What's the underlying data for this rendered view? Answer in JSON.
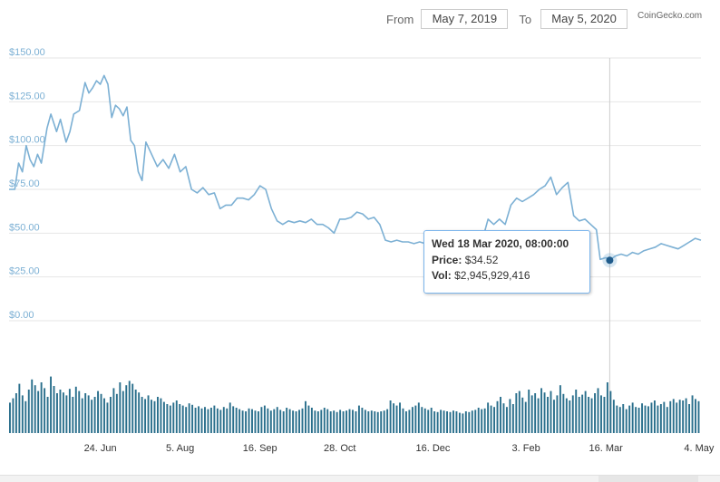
{
  "header": {
    "from_label": "From",
    "from_date": "May 7, 2019",
    "to_label": "To",
    "to_date": "May 5, 2020",
    "brand": "CoinGecko.com"
  },
  "tooltip": {
    "date": "Wed 18 Mar 2020, 08:00:00",
    "price_label": "Price:",
    "price_value": "$34.52",
    "vol_label": "Vol:",
    "vol_value": "$2,945,929,416"
  },
  "colors": {
    "price_line": "#7cb0d4",
    "volume_bars": "#2a6f8c",
    "marker": "#1f5b8b",
    "grid": "#e6e6e6"
  },
  "chart_data": [
    {
      "type": "line",
      "title": "",
      "xlabel": "",
      "ylabel": "",
      "ylim": [
        0,
        150
      ],
      "y_ticks": [
        "$0.00",
        "$25.00",
        "$50.00",
        "$75.00",
        "$100.00",
        "$125.00",
        "$150.00"
      ],
      "x_ticks": [
        {
          "label": "24. Jun",
          "date": "2019-06-24"
        },
        {
          "label": "5. Aug",
          "date": "2019-08-05"
        },
        {
          "label": "16. Sep",
          "date": "2019-09-16"
        },
        {
          "label": "28. Oct",
          "date": "2019-10-28"
        },
        {
          "label": "16. Dec",
          "date": "2019-12-16"
        },
        {
          "label": "3. Feb",
          "date": "2020-02-03"
        },
        {
          "label": "16. Mar",
          "date": "2020-03-16"
        },
        {
          "label": "4. May",
          "date": "2020-05-04"
        }
      ],
      "x_range": [
        "2019-05-07",
        "2020-05-05"
      ],
      "grid": true,
      "legend": "none",
      "series": [
        {
          "points": [
            [
              "2019-05-07",
              75
            ],
            [
              "2019-05-10",
              75
            ],
            [
              "2019-05-12",
              90
            ],
            [
              "2019-05-14",
              85
            ],
            [
              "2019-05-16",
              100
            ],
            [
              "2019-05-18",
              92
            ],
            [
              "2019-05-20",
              88
            ],
            [
              "2019-05-22",
              95
            ],
            [
              "2019-05-24",
              90
            ],
            [
              "2019-05-27",
              110
            ],
            [
              "2019-05-29",
              118
            ],
            [
              "2019-06-01",
              108
            ],
            [
              "2019-06-03",
              115
            ],
            [
              "2019-06-06",
              102
            ],
            [
              "2019-06-08",
              108
            ],
            [
              "2019-06-10",
              118
            ],
            [
              "2019-06-13",
              120
            ],
            [
              "2019-06-16",
              136
            ],
            [
              "2019-06-18",
              130
            ],
            [
              "2019-06-20",
              133
            ],
            [
              "2019-06-22",
              137
            ],
            [
              "2019-06-24",
              135
            ],
            [
              "2019-06-26",
              140
            ],
            [
              "2019-06-28",
              135
            ],
            [
              "2019-06-30",
              116
            ],
            [
              "2019-07-02",
              123
            ],
            [
              "2019-07-04",
              121
            ],
            [
              "2019-07-06",
              117
            ],
            [
              "2019-07-08",
              122
            ],
            [
              "2019-07-10",
              103
            ],
            [
              "2019-07-12",
              100
            ],
            [
              "2019-07-14",
              85
            ],
            [
              "2019-07-16",
              80
            ],
            [
              "2019-07-18",
              102
            ],
            [
              "2019-07-21",
              95
            ],
            [
              "2019-07-24",
              88
            ],
            [
              "2019-07-27",
              92
            ],
            [
              "2019-07-30",
              87
            ],
            [
              "2019-08-02",
              95
            ],
            [
              "2019-08-05",
              85
            ],
            [
              "2019-08-08",
              88
            ],
            [
              "2019-08-11",
              75
            ],
            [
              "2019-08-14",
              73
            ],
            [
              "2019-08-17",
              76
            ],
            [
              "2019-08-20",
              72
            ],
            [
              "2019-08-23",
              73
            ],
            [
              "2019-08-26",
              64
            ],
            [
              "2019-08-29",
              66
            ],
            [
              "2019-09-01",
              66
            ],
            [
              "2019-09-04",
              70
            ],
            [
              "2019-09-07",
              70
            ],
            [
              "2019-09-10",
              69
            ],
            [
              "2019-09-13",
              72
            ],
            [
              "2019-09-16",
              77
            ],
            [
              "2019-09-19",
              75
            ],
            [
              "2019-09-22",
              64
            ],
            [
              "2019-09-25",
              57
            ],
            [
              "2019-09-28",
              55
            ],
            [
              "2019-10-01",
              57
            ],
            [
              "2019-10-04",
              56
            ],
            [
              "2019-10-07",
              57
            ],
            [
              "2019-10-10",
              56
            ],
            [
              "2019-10-13",
              58
            ],
            [
              "2019-10-16",
              55
            ],
            [
              "2019-10-19",
              55
            ],
            [
              "2019-10-22",
              53
            ],
            [
              "2019-10-25",
              50
            ],
            [
              "2019-10-28",
              58
            ],
            [
              "2019-10-31",
              58
            ],
            [
              "2019-11-03",
              59
            ],
            [
              "2019-11-06",
              62
            ],
            [
              "2019-11-09",
              61
            ],
            [
              "2019-11-12",
              58
            ],
            [
              "2019-11-15",
              59
            ],
            [
              "2019-11-18",
              55
            ],
            [
              "2019-11-21",
              46
            ],
            [
              "2019-11-24",
              45
            ],
            [
              "2019-11-27",
              46
            ],
            [
              "2019-11-30",
              45
            ],
            [
              "2019-12-03",
              45
            ],
            [
              "2019-12-06",
              44
            ],
            [
              "2019-12-09",
              45
            ],
            [
              "2019-12-12",
              44
            ],
            [
              "2019-12-15",
              45
            ],
            [
              "2019-12-18",
              44
            ],
            [
              "2019-12-21",
              42
            ],
            [
              "2019-12-24",
              43
            ],
            [
              "2019-12-27",
              42
            ],
            [
              "2019-12-30",
              42
            ],
            [
              "2020-01-02",
              42
            ],
            [
              "2020-01-05",
              43
            ],
            [
              "2020-01-08",
              44
            ],
            [
              "2020-01-11",
              46
            ],
            [
              "2020-01-14",
              58
            ],
            [
              "2020-01-17",
              55
            ],
            [
              "2020-01-20",
              58
            ],
            [
              "2020-01-23",
              55
            ],
            [
              "2020-01-26",
              66
            ],
            [
              "2020-01-29",
              70
            ],
            [
              "2020-02-01",
              68
            ],
            [
              "2020-02-04",
              70
            ],
            [
              "2020-02-07",
              72
            ],
            [
              "2020-02-10",
              75
            ],
            [
              "2020-02-13",
              77
            ],
            [
              "2020-02-16",
              82
            ],
            [
              "2020-02-19",
              72
            ],
            [
              "2020-02-22",
              76
            ],
            [
              "2020-02-25",
              79
            ],
            [
              "2020-02-28",
              60
            ],
            [
              "2020-03-02",
              57
            ],
            [
              "2020-03-05",
              58
            ],
            [
              "2020-03-08",
              55
            ],
            [
              "2020-03-11",
              52
            ],
            [
              "2020-03-13",
              35
            ],
            [
              "2020-03-16",
              36
            ],
            [
              "2020-03-18",
              34.52
            ],
            [
              "2020-03-21",
              37
            ],
            [
              "2020-03-24",
              38
            ],
            [
              "2020-03-27",
              37
            ],
            [
              "2020-03-30",
              39
            ],
            [
              "2020-04-02",
              38
            ],
            [
              "2020-04-05",
              40
            ],
            [
              "2020-04-08",
              41
            ],
            [
              "2020-04-11",
              42
            ],
            [
              "2020-04-14",
              44
            ],
            [
              "2020-04-17",
              43
            ],
            [
              "2020-04-20",
              42
            ],
            [
              "2020-04-23",
              41
            ],
            [
              "2020-04-26",
              43
            ],
            [
              "2020-04-29",
              45
            ],
            [
              "2020-05-02",
              47
            ],
            [
              "2020-05-05",
              46
            ]
          ]
        }
      ],
      "highlighted_point": {
        "date": "2020-03-18",
        "value": 34.52
      }
    },
    {
      "type": "bar",
      "title": "",
      "xlabel": "",
      "ylabel": "",
      "x_range": [
        "2019-05-07",
        "2020-05-05"
      ],
      "volume_shares": [
        0.42,
        0.48,
        0.55,
        0.68,
        0.52,
        0.44,
        0.6,
        0.74,
        0.66,
        0.58,
        0.7,
        0.62,
        0.5,
        0.78,
        0.65,
        0.55,
        0.6,
        0.56,
        0.52,
        0.61,
        0.5,
        0.64,
        0.58,
        0.48,
        0.55,
        0.52,
        0.46,
        0.5,
        0.58,
        0.54,
        0.48,
        0.42,
        0.5,
        0.62,
        0.54,
        0.7,
        0.58,
        0.66,
        0.72,
        0.68,
        0.6,
        0.56,
        0.5,
        0.47,
        0.52,
        0.46,
        0.44,
        0.5,
        0.48,
        0.43,
        0.4,
        0.38,
        0.42,
        0.45,
        0.4,
        0.38,
        0.36,
        0.41,
        0.39,
        0.35,
        0.37,
        0.34,
        0.36,
        0.33,
        0.35,
        0.38,
        0.34,
        0.32,
        0.36,
        0.34,
        0.42,
        0.37,
        0.35,
        0.33,
        0.31,
        0.3,
        0.34,
        0.33,
        0.31,
        0.3,
        0.36,
        0.38,
        0.34,
        0.31,
        0.33,
        0.36,
        0.32,
        0.3,
        0.35,
        0.33,
        0.31,
        0.3,
        0.32,
        0.34,
        0.44,
        0.38,
        0.35,
        0.31,
        0.3,
        0.32,
        0.35,
        0.33,
        0.3,
        0.31,
        0.29,
        0.32,
        0.3,
        0.31,
        0.33,
        0.32,
        0.3,
        0.38,
        0.35,
        0.32,
        0.3,
        0.31,
        0.3,
        0.29,
        0.3,
        0.31,
        0.33,
        0.45,
        0.41,
        0.38,
        0.42,
        0.34,
        0.3,
        0.32,
        0.36,
        0.38,
        0.42,
        0.36,
        0.34,
        0.32,
        0.35,
        0.3,
        0.29,
        0.32,
        0.31,
        0.3,
        0.29,
        0.31,
        0.3,
        0.28,
        0.27,
        0.3,
        0.29,
        0.31,
        0.32,
        0.35,
        0.33,
        0.34,
        0.42,
        0.38,
        0.36,
        0.44,
        0.5,
        0.41,
        0.36,
        0.47,
        0.4,
        0.55,
        0.58,
        0.49,
        0.43,
        0.6,
        0.52,
        0.55,
        0.48,
        0.62,
        0.56,
        0.5,
        0.58,
        0.46,
        0.52,
        0.66,
        0.54,
        0.48,
        0.45,
        0.52,
        0.6,
        0.5,
        0.53,
        0.58,
        0.5,
        0.48,
        0.55,
        0.62,
        0.52,
        0.5,
        0.7,
        0.58,
        0.46,
        0.38,
        0.36,
        0.4,
        0.33,
        0.38,
        0.42,
        0.36,
        0.35,
        0.41,
        0.38,
        0.37,
        0.42,
        0.45,
        0.38,
        0.4,
        0.43,
        0.36,
        0.44,
        0.47,
        0.42,
        0.46,
        0.45,
        0.48,
        0.4,
        0.52,
        0.47,
        0.44
      ]
    }
  ]
}
